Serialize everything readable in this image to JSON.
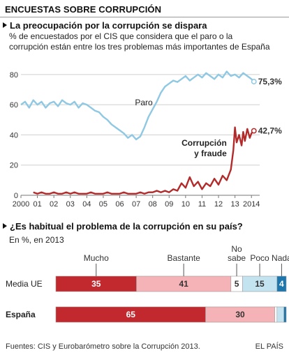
{
  "header": {
    "title": "ENCUESTAS SOBRE CORRUPCIÓN"
  },
  "chart1": {
    "title": "La preocupación por la corrupción se dispara",
    "subtitle_line1": "% de encuestados por el CIS que considera que el paro o la",
    "subtitle_line2": "corrupción están entre los tres problemas más importantes de España"
  },
  "chart2": {
    "title": "¿Es habitual el problema de la corrupción en su país?",
    "subtitle": "En %, en 2013"
  },
  "footer": {
    "sources": "Fuentes: CIS y Eurobarómetro sobre la Corrupción 2013.",
    "brand": "EL PAÍS"
  },
  "chart_data": [
    {
      "type": "line",
      "ylim": [
        0,
        85
      ],
      "yticks": [
        0,
        20,
        40,
        60,
        80
      ],
      "xlim": [
        2000,
        2014.5
      ],
      "x_tick_labels": [
        "2000",
        "01",
        "02",
        "03",
        "04",
        "05",
        "06",
        "07",
        "08",
        "09",
        "10",
        "11",
        "12",
        "13",
        "2014"
      ],
      "x_tick_values": [
        2000,
        2001,
        2002,
        2003,
        2004,
        2005,
        2006,
        2007,
        2008,
        2009,
        2010,
        2011,
        2012,
        2013,
        2014
      ],
      "grid": "horizontal",
      "colors": {
        "paro": "#8fc8e3",
        "corrupcion": "#b32a2a"
      },
      "series": [
        {
          "name": "Paro",
          "end_label": "75,3%",
          "x": [
            2000.0,
            2000.25,
            2000.5,
            2000.75,
            2001.0,
            2001.25,
            2001.5,
            2001.75,
            2002.0,
            2002.25,
            2002.5,
            2002.75,
            2003.0,
            2003.25,
            2003.5,
            2003.75,
            2004.0,
            2004.25,
            2004.5,
            2004.75,
            2005.0,
            2005.25,
            2005.5,
            2005.75,
            2006.0,
            2006.25,
            2006.5,
            2006.75,
            2007.0,
            2007.25,
            2007.5,
            2007.75,
            2008.0,
            2008.25,
            2008.5,
            2008.75,
            2009.0,
            2009.25,
            2009.5,
            2009.75,
            2010.0,
            2010.25,
            2010.5,
            2010.75,
            2011.0,
            2011.25,
            2011.5,
            2011.75,
            2012.0,
            2012.25,
            2012.5,
            2012.75,
            2013.0,
            2013.25,
            2013.5,
            2013.75,
            2014.0,
            2014.15
          ],
          "values": [
            60,
            62,
            58,
            63,
            60,
            62,
            58,
            61,
            62,
            59,
            63,
            61,
            60,
            62,
            58,
            61,
            60,
            58,
            56,
            55,
            52,
            50,
            47,
            45,
            43,
            41,
            38,
            40,
            37,
            39,
            45,
            52,
            57,
            62,
            68,
            72,
            74,
            76,
            75,
            77,
            79,
            76,
            78,
            80,
            78,
            81,
            79,
            77,
            80,
            78,
            82,
            79,
            80,
            78,
            81,
            79,
            77,
            75.3
          ]
        },
        {
          "name": "Corrupción y fraude",
          "end_label": "42,7%",
          "x": [
            2000.75,
            2001.0,
            2001.25,
            2001.5,
            2001.75,
            2002.0,
            2002.25,
            2002.5,
            2002.75,
            2003.0,
            2003.25,
            2003.5,
            2003.75,
            2004.0,
            2004.25,
            2004.5,
            2004.75,
            2005.0,
            2005.25,
            2005.5,
            2005.75,
            2006.0,
            2006.25,
            2006.5,
            2006.75,
            2007.0,
            2007.25,
            2007.5,
            2007.75,
            2008.0,
            2008.25,
            2008.5,
            2008.75,
            2009.0,
            2009.25,
            2009.5,
            2009.75,
            2010.0,
            2010.25,
            2010.5,
            2010.75,
            2011.0,
            2011.25,
            2011.5,
            2011.75,
            2012.0,
            2012.25,
            2012.5,
            2012.75,
            2012.9,
            2013.0,
            2013.1,
            2013.25,
            2013.4,
            2013.5,
            2013.6,
            2013.75,
            2013.9,
            2014.0,
            2014.15
          ],
          "values": [
            2,
            1,
            2,
            1,
            1,
            2,
            1,
            1,
            2,
            1,
            2,
            1,
            1,
            1,
            2,
            1,
            1,
            1,
            2,
            1,
            1,
            1,
            2,
            1,
            1,
            1,
            2,
            1,
            2,
            2,
            3,
            2,
            3,
            2,
            4,
            3,
            8,
            5,
            12,
            6,
            9,
            4,
            8,
            6,
            11,
            7,
            13,
            10,
            17,
            30,
            45,
            35,
            40,
            33,
            42,
            36,
            44,
            38,
            41,
            42.7
          ]
        }
      ]
    },
    {
      "type": "bar",
      "stacked": true,
      "orientation": "horizontal",
      "categories": [
        "Media UE",
        "España"
      ],
      "series": [
        {
          "name": "Mucho",
          "values": [
            35,
            65
          ],
          "labels": [
            "35",
            "65"
          ],
          "color": "#c1292e"
        },
        {
          "name": "Bastante",
          "values": [
            41,
            30
          ],
          "labels": [
            "41",
            "30"
          ],
          "color": "#f6b3b7"
        },
        {
          "name": "No sabe",
          "values": [
            5,
            1
          ],
          "labels": [
            "5",
            ""
          ],
          "color": "#ffffff"
        },
        {
          "name": "Poco",
          "values": [
            15,
            3
          ],
          "labels": [
            "15",
            ""
          ],
          "color": "#c3e3f1"
        },
        {
          "name": "Nada",
          "values": [
            4,
            1
          ],
          "labels": [
            "4",
            ""
          ],
          "color": "#1d77ad"
        }
      ],
      "legend_labels": [
        "Mucho",
        "Bastante",
        "No\nsabe",
        "Poco",
        "Nada"
      ]
    }
  ]
}
